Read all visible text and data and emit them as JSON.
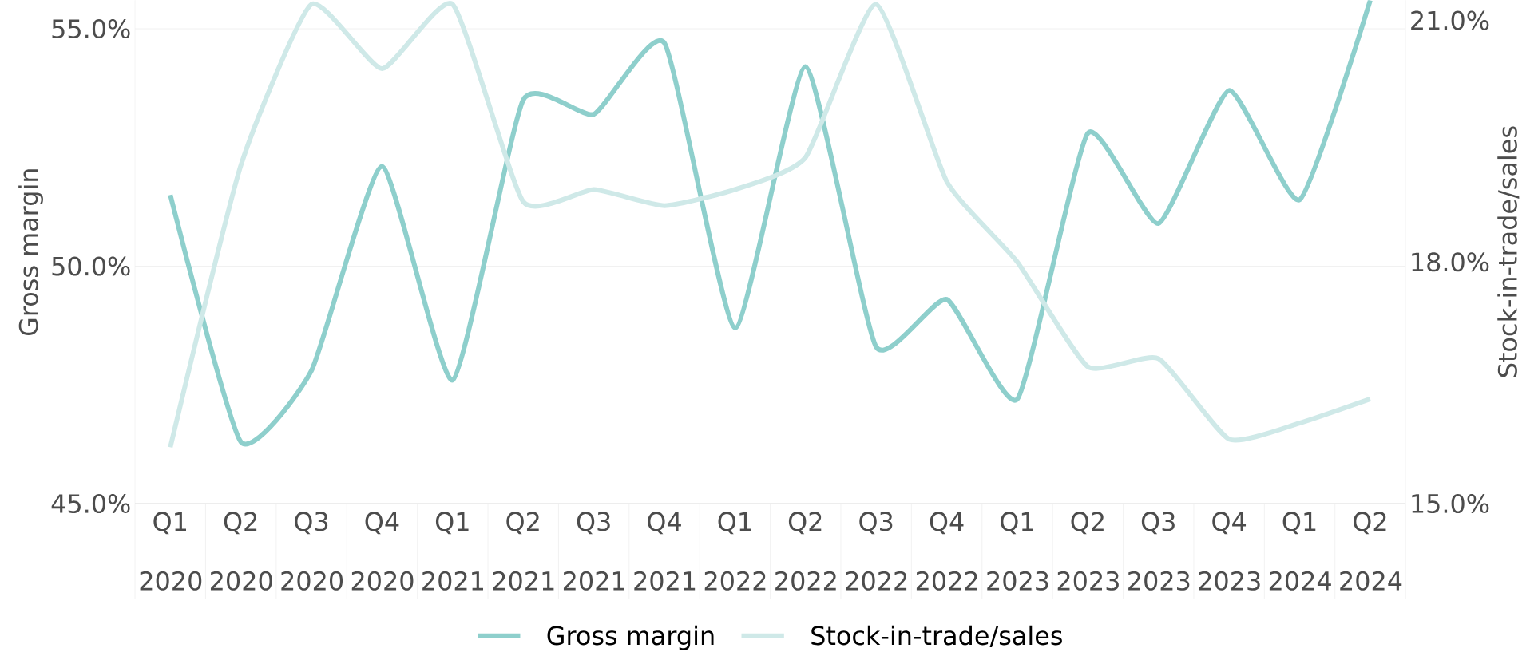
{
  "chart_data": {
    "type": "line",
    "categories": [
      "Q1 2020",
      "Q2 2020",
      "Q3 2020",
      "Q4 2020",
      "Q1 2021",
      "Q2 2021",
      "Q3 2021",
      "Q4 2021",
      "Q1 2022",
      "Q2 2022",
      "Q3 2022",
      "Q4 2022",
      "Q1 2023",
      "Q2 2023",
      "Q3 2023",
      "Q4 2023",
      "Q1 2024",
      "Q2 2024"
    ],
    "series": [
      {
        "name": "Gross margin",
        "color": "#8ecfcc",
        "values": [
          51.5,
          46.3,
          47.8,
          52.1,
          47.6,
          53.5,
          53.2,
          54.7,
          48.7,
          54.2,
          48.3,
          49.3,
          47.2,
          52.8,
          50.9,
          53.7,
          51.4,
          55.6
        ]
      },
      {
        "name": "Stock-in-trade/sales",
        "color": "#cfe9e8",
        "axis": "y2",
        "values": [
          15.7,
          19.2,
          21.2,
          20.4,
          21.2,
          18.75,
          18.9,
          18.7,
          18.9,
          19.3,
          21.2,
          19.0,
          18.0,
          16.7,
          16.8,
          15.8,
          16.0,
          16.3
        ]
      }
    ],
    "ylabel": "Gross margin",
    "y2label": "Stock-in-trade/sales",
    "ylim": [
      45,
      55.6
    ],
    "yticks": [
      {
        "value": 45,
        "label": "45.0%"
      },
      {
        "value": 50,
        "label": "50.0%"
      },
      {
        "value": 55,
        "label": "55.0%"
      }
    ],
    "y2lim": [
      15,
      21.25
    ],
    "y2ticks": [
      {
        "value": 15,
        "label": "15.0%"
      },
      {
        "value": 18,
        "label": "18.0%"
      },
      {
        "value": 21,
        "label": "21.0%"
      }
    ],
    "grid": "y",
    "legend": "bottom",
    "marker": "none",
    "line_style": "solid"
  }
}
